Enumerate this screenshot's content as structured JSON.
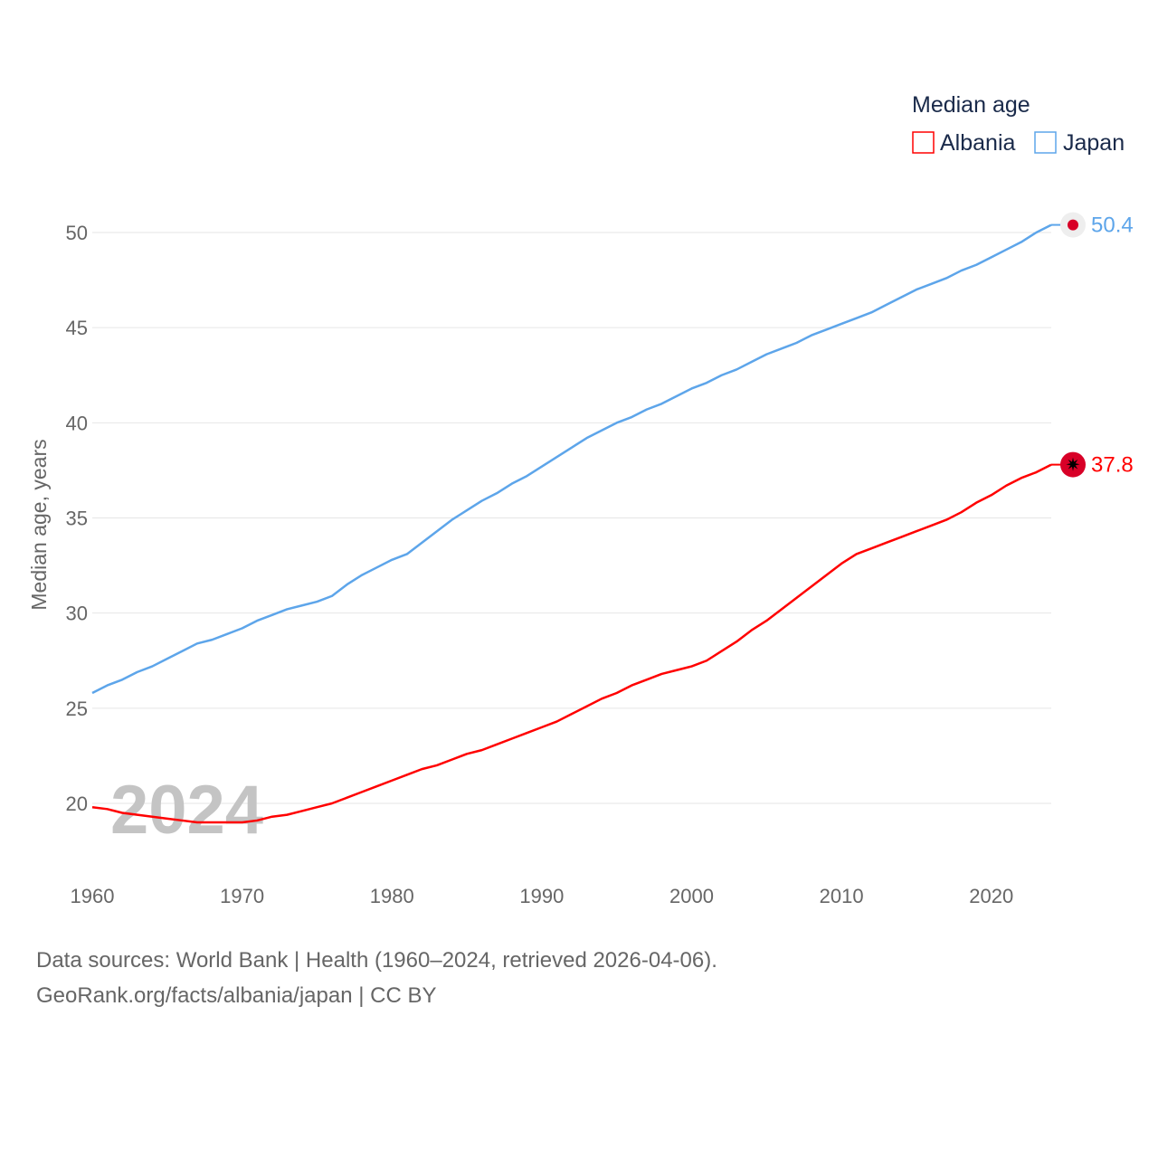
{
  "chart_data": {
    "type": "line",
    "title": "Median age",
    "xlabel": "",
    "ylabel": "Median age, years",
    "xlim": [
      1960,
      2024
    ],
    "ylim": [
      17.5,
      52
    ],
    "x_ticks": [
      1960,
      1970,
      1980,
      1990,
      2000,
      2010,
      2020
    ],
    "y_ticks": [
      20,
      25,
      30,
      35,
      40,
      45,
      50
    ],
    "grid": true,
    "legend_position": "top-right",
    "year_label": "2024",
    "x": [
      1960,
      1961,
      1962,
      1963,
      1964,
      1965,
      1966,
      1967,
      1968,
      1969,
      1970,
      1971,
      1972,
      1973,
      1974,
      1975,
      1976,
      1977,
      1978,
      1979,
      1980,
      1981,
      1982,
      1983,
      1984,
      1985,
      1986,
      1987,
      1988,
      1989,
      1990,
      1991,
      1992,
      1993,
      1994,
      1995,
      1996,
      1997,
      1998,
      1999,
      2000,
      2001,
      2002,
      2003,
      2004,
      2005,
      2006,
      2007,
      2008,
      2009,
      2010,
      2011,
      2012,
      2013,
      2014,
      2015,
      2016,
      2017,
      2018,
      2019,
      2020,
      2021,
      2022,
      2023,
      2024
    ],
    "series": [
      {
        "name": "Albania",
        "color": "#ff0000",
        "end_label": "37.8",
        "flag": "albania",
        "values": [
          19.8,
          19.7,
          19.5,
          19.4,
          19.3,
          19.2,
          19.1,
          19.0,
          19.0,
          19.0,
          19.0,
          19.1,
          19.3,
          19.4,
          19.6,
          19.8,
          20.0,
          20.3,
          20.6,
          20.9,
          21.2,
          21.5,
          21.8,
          22.0,
          22.3,
          22.6,
          22.8,
          23.1,
          23.4,
          23.7,
          24.0,
          24.3,
          24.7,
          25.1,
          25.5,
          25.8,
          26.2,
          26.5,
          26.8,
          27.0,
          27.2,
          27.5,
          28.0,
          28.5,
          29.1,
          29.6,
          30.2,
          30.8,
          31.4,
          32.0,
          32.6,
          33.1,
          33.4,
          33.7,
          34.0,
          34.3,
          34.6,
          34.9,
          35.3,
          35.8,
          36.2,
          36.7,
          37.1,
          37.4,
          37.8
        ]
      },
      {
        "name": "Japan",
        "color": "#5da5ea",
        "end_label": "50.4",
        "flag": "japan",
        "values": [
          25.8,
          26.2,
          26.5,
          26.9,
          27.2,
          27.6,
          28.0,
          28.4,
          28.6,
          28.9,
          29.2,
          29.6,
          29.9,
          30.2,
          30.4,
          30.6,
          30.9,
          31.5,
          32.0,
          32.4,
          32.8,
          33.1,
          33.7,
          34.3,
          34.9,
          35.4,
          35.9,
          36.3,
          36.8,
          37.2,
          37.7,
          38.2,
          38.7,
          39.2,
          39.6,
          40.0,
          40.3,
          40.7,
          41.0,
          41.4,
          41.8,
          42.1,
          42.5,
          42.8,
          43.2,
          43.6,
          43.9,
          44.2,
          44.6,
          44.9,
          45.2,
          45.5,
          45.8,
          46.2,
          46.6,
          47.0,
          47.3,
          47.6,
          48.0,
          48.3,
          48.7,
          49.1,
          49.5,
          50.0,
          50.4
        ]
      }
    ]
  },
  "footer": {
    "line1": "Data sources: World Bank | Health (1960–2024, retrieved 2026-04-06).",
    "line2": "GeoRank.org/facts/albania/japan | CC BY"
  }
}
